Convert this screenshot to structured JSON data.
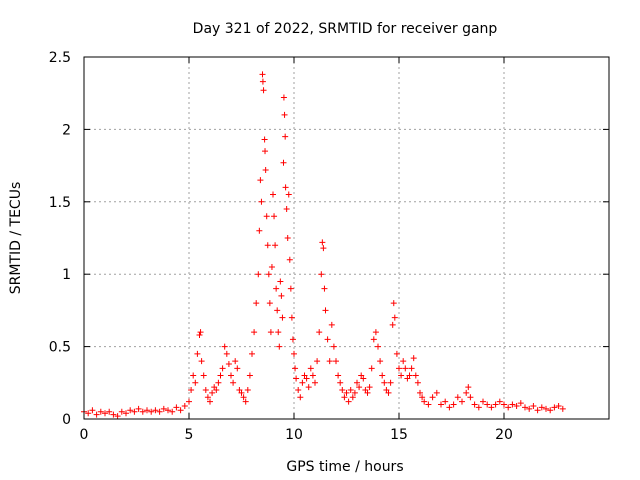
{
  "chart_data": {
    "type": "scatter",
    "title": "Day 321 of 2022, SRMTID for receiver ganp",
    "xlabel": "GPS time / hours",
    "ylabel": "SRMTID / TECUs",
    "xlim": [
      0,
      25
    ],
    "ylim": [
      0,
      2.5
    ],
    "xticks": [
      0,
      5,
      10,
      15,
      20
    ],
    "xtick_labels": [
      "0",
      "5",
      "10",
      "15",
      "20"
    ],
    "yticks": [
      0,
      0.5,
      1,
      1.5,
      2,
      2.5
    ],
    "ytick_labels": [
      "0",
      "0.5",
      "1",
      "1.5",
      "2",
      "2.5"
    ],
    "grid": true,
    "marker": "+",
    "color": "#ff0000",
    "series": [
      {
        "name": "SRMTID",
        "points": [
          [
            0.0,
            0.05
          ],
          [
            0.2,
            0.04
          ],
          [
            0.4,
            0.06
          ],
          [
            0.6,
            0.03
          ],
          [
            0.8,
            0.05
          ],
          [
            1.0,
            0.04
          ],
          [
            1.2,
            0.05
          ],
          [
            1.4,
            0.03
          ],
          [
            1.6,
            0.02
          ],
          [
            1.8,
            0.05
          ],
          [
            2.0,
            0.04
          ],
          [
            2.2,
            0.06
          ],
          [
            2.4,
            0.05
          ],
          [
            2.6,
            0.07
          ],
          [
            2.8,
            0.05
          ],
          [
            3.0,
            0.06
          ],
          [
            3.2,
            0.05
          ],
          [
            3.4,
            0.06
          ],
          [
            3.6,
            0.05
          ],
          [
            3.8,
            0.07
          ],
          [
            4.0,
            0.06
          ],
          [
            4.2,
            0.05
          ],
          [
            4.4,
            0.08
          ],
          [
            4.6,
            0.06
          ],
          [
            4.8,
            0.09
          ],
          [
            5.0,
            0.12
          ],
          [
            5.1,
            0.2
          ],
          [
            5.2,
            0.3
          ],
          [
            5.3,
            0.25
          ],
          [
            5.4,
            0.45
          ],
          [
            5.5,
            0.58
          ],
          [
            5.55,
            0.6
          ],
          [
            5.6,
            0.4
          ],
          [
            5.7,
            0.3
          ],
          [
            5.8,
            0.2
          ],
          [
            5.9,
            0.15
          ],
          [
            6.0,
            0.12
          ],
          [
            6.1,
            0.18
          ],
          [
            6.2,
            0.22
          ],
          [
            6.3,
            0.2
          ],
          [
            6.4,
            0.25
          ],
          [
            6.5,
            0.3
          ],
          [
            6.6,
            0.35
          ],
          [
            6.7,
            0.5
          ],
          [
            6.8,
            0.45
          ],
          [
            6.9,
            0.38
          ],
          [
            7.0,
            0.3
          ],
          [
            7.1,
            0.25
          ],
          [
            7.2,
            0.4
          ],
          [
            7.3,
            0.35
          ],
          [
            7.4,
            0.2
          ],
          [
            7.5,
            0.18
          ],
          [
            7.6,
            0.15
          ],
          [
            7.7,
            0.12
          ],
          [
            7.8,
            0.2
          ],
          [
            7.9,
            0.3
          ],
          [
            8.0,
            0.45
          ],
          [
            8.1,
            0.6
          ],
          [
            8.2,
            0.8
          ],
          [
            8.3,
            1.0
          ],
          [
            8.35,
            1.3
          ],
          [
            8.4,
            1.65
          ],
          [
            8.45,
            1.5
          ],
          [
            8.5,
            2.38
          ],
          [
            8.52,
            2.33
          ],
          [
            8.55,
            2.27
          ],
          [
            8.6,
            1.93
          ],
          [
            8.62,
            1.85
          ],
          [
            8.65,
            1.72
          ],
          [
            8.7,
            1.4
          ],
          [
            8.75,
            1.2
          ],
          [
            8.8,
            1.0
          ],
          [
            8.85,
            0.8
          ],
          [
            8.9,
            0.6
          ],
          [
            8.95,
            1.05
          ],
          [
            9.0,
            1.55
          ],
          [
            9.05,
            1.4
          ],
          [
            9.1,
            1.2
          ],
          [
            9.15,
            0.9
          ],
          [
            9.2,
            0.75
          ],
          [
            9.25,
            0.6
          ],
          [
            9.3,
            0.5
          ],
          [
            9.35,
            0.95
          ],
          [
            9.4,
            0.85
          ],
          [
            9.45,
            0.7
          ],
          [
            9.5,
            1.77
          ],
          [
            9.52,
            2.22
          ],
          [
            9.55,
            2.1
          ],
          [
            9.58,
            1.95
          ],
          [
            9.6,
            1.6
          ],
          [
            9.65,
            1.45
          ],
          [
            9.7,
            1.25
          ],
          [
            9.75,
            1.55
          ],
          [
            9.8,
            1.1
          ],
          [
            9.85,
            0.9
          ],
          [
            9.9,
            0.7
          ],
          [
            9.95,
            0.55
          ],
          [
            10.0,
            0.45
          ],
          [
            10.05,
            0.35
          ],
          [
            10.1,
            0.28
          ],
          [
            10.2,
            0.2
          ],
          [
            10.3,
            0.15
          ],
          [
            10.4,
            0.25
          ],
          [
            10.5,
            0.3
          ],
          [
            10.6,
            0.28
          ],
          [
            10.7,
            0.22
          ],
          [
            10.8,
            0.35
          ],
          [
            10.9,
            0.3
          ],
          [
            11.0,
            0.25
          ],
          [
            11.1,
            0.4
          ],
          [
            11.2,
            0.6
          ],
          [
            11.3,
            1.0
          ],
          [
            11.35,
            1.22
          ],
          [
            11.4,
            1.18
          ],
          [
            11.45,
            0.9
          ],
          [
            11.5,
            0.75
          ],
          [
            11.6,
            0.55
          ],
          [
            11.7,
            0.4
          ],
          [
            11.8,
            0.65
          ],
          [
            11.9,
            0.5
          ],
          [
            12.0,
            0.4
          ],
          [
            12.1,
            0.3
          ],
          [
            12.2,
            0.25
          ],
          [
            12.3,
            0.2
          ],
          [
            12.4,
            0.15
          ],
          [
            12.5,
            0.18
          ],
          [
            12.6,
            0.12
          ],
          [
            12.7,
            0.2
          ],
          [
            12.8,
            0.15
          ],
          [
            12.9,
            0.18
          ],
          [
            13.0,
            0.25
          ],
          [
            13.1,
            0.22
          ],
          [
            13.2,
            0.3
          ],
          [
            13.3,
            0.28
          ],
          [
            13.4,
            0.2
          ],
          [
            13.5,
            0.18
          ],
          [
            13.6,
            0.22
          ],
          [
            13.7,
            0.35
          ],
          [
            13.8,
            0.55
          ],
          [
            13.9,
            0.6
          ],
          [
            14.0,
            0.5
          ],
          [
            14.1,
            0.4
          ],
          [
            14.2,
            0.3
          ],
          [
            14.3,
            0.25
          ],
          [
            14.4,
            0.2
          ],
          [
            14.5,
            0.18
          ],
          [
            14.6,
            0.25
          ],
          [
            14.7,
            0.65
          ],
          [
            14.75,
            0.8
          ],
          [
            14.8,
            0.7
          ],
          [
            14.9,
            0.45
          ],
          [
            15.0,
            0.35
          ],
          [
            15.1,
            0.3
          ],
          [
            15.2,
            0.4
          ],
          [
            15.3,
            0.35
          ],
          [
            15.4,
            0.28
          ],
          [
            15.5,
            0.3
          ],
          [
            15.6,
            0.35
          ],
          [
            15.7,
            0.42
          ],
          [
            15.8,
            0.3
          ],
          [
            15.9,
            0.25
          ],
          [
            16.0,
            0.18
          ],
          [
            16.1,
            0.15
          ],
          [
            16.2,
            0.12
          ],
          [
            16.4,
            0.1
          ],
          [
            16.6,
            0.15
          ],
          [
            16.8,
            0.18
          ],
          [
            17.0,
            0.1
          ],
          [
            17.2,
            0.12
          ],
          [
            17.4,
            0.08
          ],
          [
            17.6,
            0.1
          ],
          [
            17.8,
            0.15
          ],
          [
            18.0,
            0.12
          ],
          [
            18.2,
            0.18
          ],
          [
            18.3,
            0.22
          ],
          [
            18.4,
            0.15
          ],
          [
            18.6,
            0.1
          ],
          [
            18.8,
            0.08
          ],
          [
            19.0,
            0.12
          ],
          [
            19.2,
            0.1
          ],
          [
            19.4,
            0.08
          ],
          [
            19.6,
            0.1
          ],
          [
            19.8,
            0.12
          ],
          [
            20.0,
            0.1
          ],
          [
            20.2,
            0.08
          ],
          [
            20.4,
            0.1
          ],
          [
            20.6,
            0.09
          ],
          [
            20.8,
            0.11
          ],
          [
            21.0,
            0.08
          ],
          [
            21.2,
            0.07
          ],
          [
            21.4,
            0.09
          ],
          [
            21.6,
            0.06
          ],
          [
            21.8,
            0.08
          ],
          [
            22.0,
            0.07
          ],
          [
            22.2,
            0.06
          ],
          [
            22.4,
            0.08
          ],
          [
            22.6,
            0.09
          ],
          [
            22.8,
            0.07
          ]
        ]
      }
    ]
  }
}
